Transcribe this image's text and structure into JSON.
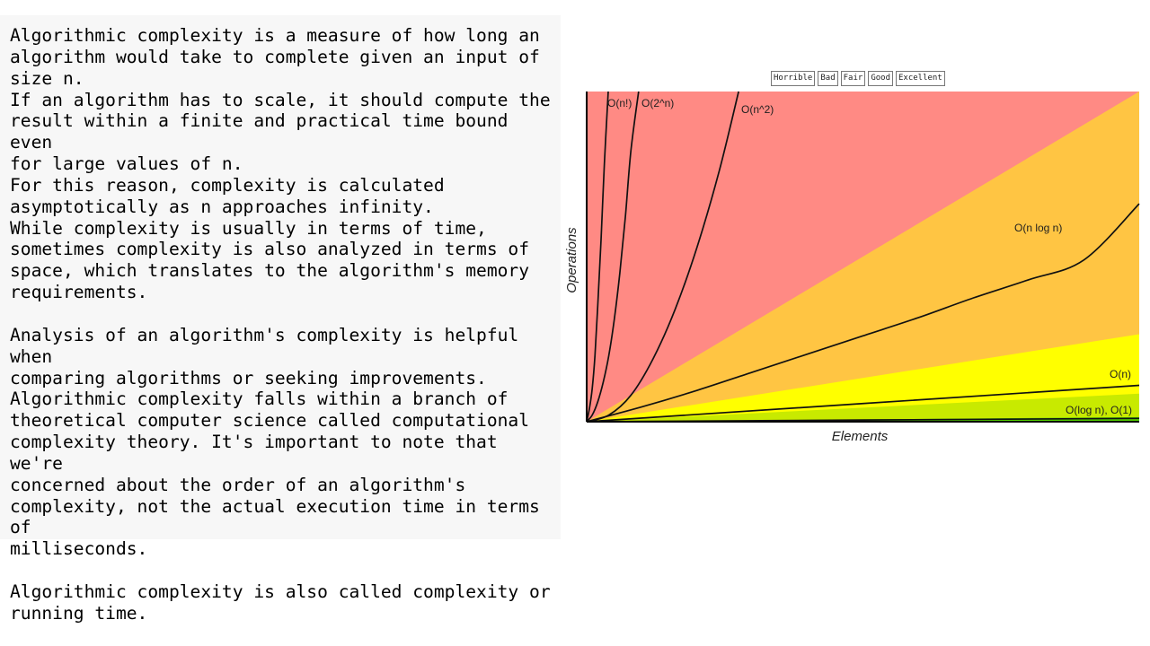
{
  "text": {
    "paragraph1": "Algorithmic complexity is a measure of how long an\nalgorithm would take to complete given an input of\nsize n.\nIf an algorithm has to scale, it should compute the\nresult within a finite and practical time bound even\nfor large values of n.\nFor this reason, complexity is calculated\nasymptotically as n approaches infinity.\nWhile complexity is usually in terms of time,\nsometimes complexity is also analyzed in terms of\nspace, which translates to the algorithm's memory\nrequirements.",
    "paragraph2": "Analysis of an algorithm's complexity is helpful when\ncomparing algorithms or seeking improvements.\nAlgorithmic complexity falls within a branch of\ntheoretical computer science called computational\ncomplexity theory. It's important to note that we're\nconcerned about the order of an algorithm's\ncomplexity, not the actual execution time in terms of\nmilliseconds.",
    "paragraph3": "Algorithmic complexity is also called complexity or\nrunning time."
  },
  "chart_data": {
    "type": "line",
    "title": "",
    "xlabel": "Elements",
    "ylabel": "Operations",
    "xlim": [
      0,
      100
    ],
    "ylim": [
      0,
      100
    ],
    "grid": false,
    "legend_position": "top-center",
    "legend": [
      {
        "label": "Horrible",
        "color": "#ff8a84"
      },
      {
        "label": "Bad",
        "color": "#ffc543"
      },
      {
        "label": "Fair",
        "color": "#ffff00"
      },
      {
        "label": "Good",
        "color": "#c8ea00"
      },
      {
        "label": "Excellent",
        "color": "#53d000"
      }
    ],
    "regions": [
      {
        "name": "Horrible",
        "color": "#ff8a84",
        "upper_y_at_x100": 100
      },
      {
        "name": "Bad",
        "color": "#ffc543",
        "upper_y_at_x100": 100
      },
      {
        "name": "Fair",
        "color": "#ffff00",
        "upper_y_at_x100": 26.5
      },
      {
        "name": "Good",
        "color": "#c8ea00",
        "upper_y_at_x100": 8.5
      },
      {
        "name": "Excellent",
        "color": "#53d000",
        "upper_y_at_x100": 1.4
      }
    ],
    "bad_region_upper_reaches_top_at_x": 100,
    "fair_region_upper_y_at_x100": 26.5,
    "good_region_upper_y_at_x100": 8.5,
    "excellent_region_upper_y_at_x100": 1.4,
    "series": [
      {
        "name": "O(n!)",
        "x": [
          0,
          0.5,
          1.0,
          1.5,
          2.0,
          2.6,
          3.2,
          3.9
        ],
        "y": [
          0,
          4,
          10,
          20,
          35,
          55,
          78,
          100
        ]
      },
      {
        "name": "O(2^n)",
        "x": [
          0,
          1,
          2,
          3,
          4,
          5,
          6,
          7,
          8,
          9.4
        ],
        "y": [
          0,
          2,
          6,
          12,
          20,
          31,
          45,
          62,
          82,
          100
        ]
      },
      {
        "name": "O(n^2)",
        "x": [
          0,
          4,
          8,
          12,
          16,
          20,
          24,
          27.5
        ],
        "y": [
          0,
          2,
          8,
          19,
          34,
          53,
          76,
          100
        ]
      },
      {
        "name": "O(n log n)",
        "x": [
          0,
          10,
          20,
          30,
          40,
          50,
          60,
          70,
          80,
          90,
          100
        ],
        "y": [
          0,
          4.5,
          9.5,
          15,
          20.5,
          26,
          31.5,
          37.5,
          43,
          49,
          66
        ]
      },
      {
        "name": "O(n)",
        "x": [
          0,
          100
        ],
        "y": [
          0,
          11
        ]
      },
      {
        "name": "O(log n), O(1)",
        "x": [
          0,
          100
        ],
        "y": [
          0,
          1
        ]
      }
    ],
    "line_labels": [
      "O(n!)",
      "O(2^n)",
      "O(n^2)",
      "O(n log n)",
      "O(n)",
      "O(log n), O(1)"
    ]
  }
}
